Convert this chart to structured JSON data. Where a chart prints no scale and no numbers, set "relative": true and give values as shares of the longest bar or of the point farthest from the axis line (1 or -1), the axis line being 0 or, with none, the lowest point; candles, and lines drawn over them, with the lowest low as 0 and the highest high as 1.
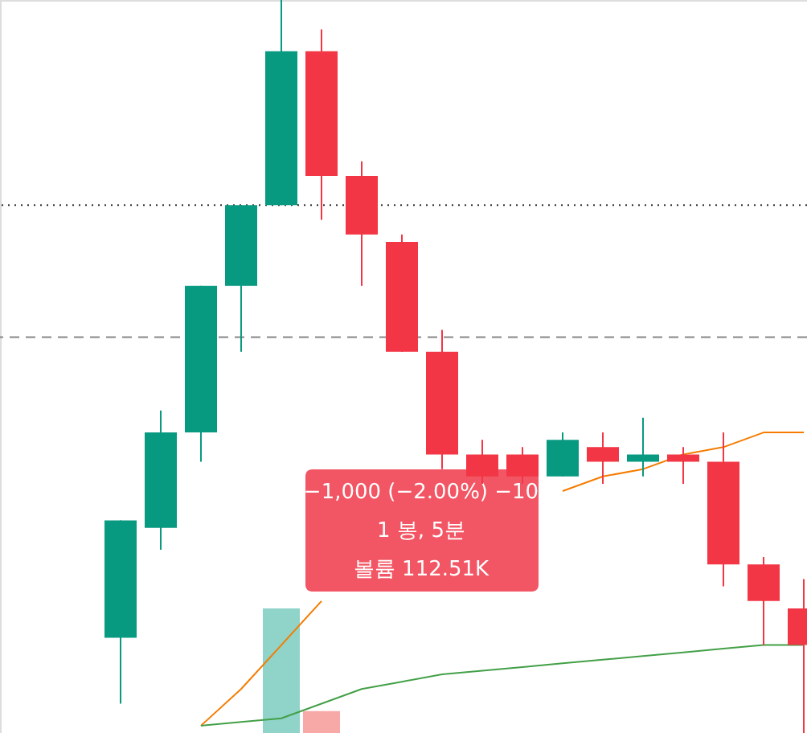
{
  "chart_data": {
    "type": "candlestick",
    "relative": true,
    "categories": [
      null,
      null,
      null,
      null,
      null,
      null,
      null,
      null,
      null,
      null,
      null,
      null,
      null,
      null,
      null,
      null,
      null,
      null
    ],
    "ohlc": [
      [
        0.13,
        0.29,
        0.04,
        0.29
      ],
      [
        0.28,
        0.44,
        0.25,
        0.41
      ],
      [
        0.41,
        0.61,
        0.37,
        0.61
      ],
      [
        0.61,
        0.72,
        0.52,
        0.72
      ],
      [
        0.72,
        1.0,
        0.72,
        0.93
      ],
      [
        0.93,
        0.96,
        0.7,
        0.76
      ],
      [
        0.76,
        0.78,
        0.61,
        0.68
      ],
      [
        0.67,
        0.68,
        0.52,
        0.52
      ],
      [
        0.52,
        0.55,
        0.36,
        0.38
      ],
      [
        0.38,
        0.4,
        0.34,
        0.35
      ],
      [
        0.38,
        0.39,
        0.34,
        0.35
      ],
      [
        0.35,
        0.41,
        0.35,
        0.4
      ],
      [
        0.39,
        0.41,
        0.34,
        0.37
      ],
      [
        0.37,
        0.43,
        0.35,
        0.38
      ],
      [
        0.38,
        0.39,
        0.34,
        0.37
      ],
      [
        0.37,
        0.41,
        0.2,
        0.23
      ],
      [
        0.23,
        0.24,
        0.12,
        0.18
      ],
      [
        0.17,
        0.21,
        0.0,
        0.12
      ]
    ],
    "colors": [
      "#089981",
      "#089981",
      "#089981",
      "#089981",
      "#089981",
      "#f23645",
      "#f23645",
      "#f23645",
      "#f23645",
      "#f23645",
      "#f23645",
      "#089981",
      "#f23645",
      "#089981",
      "#f23645",
      "#f23645",
      "#f23645",
      "#f23645"
    ],
    "series": [
      {
        "type": "bar",
        "values": [
          null,
          null,
          null,
          null,
          0.17,
          0.03,
          null,
          null,
          null,
          null,
          null,
          null,
          null,
          null,
          null,
          null,
          null,
          null
        ],
        "colors": [
          null,
          null,
          null,
          null,
          "#8fd3c9",
          "#f7a9a7",
          null,
          null,
          null,
          null,
          null,
          null,
          null,
          null,
          null,
          null,
          null,
          null
        ]
      },
      {
        "type": "line",
        "color": "#f57c00",
        "values": [
          null,
          null,
          0.01,
          0.06,
          0.12,
          0.18,
          null,
          null,
          null,
          null,
          null,
          0.33,
          0.35,
          0.36,
          0.38,
          0.39,
          0.41,
          0.41
        ]
      },
      {
        "type": "line",
        "color": "#43a047",
        "values": [
          null,
          null,
          0.01,
          0.015,
          0.02,
          0.04,
          0.06,
          0.07,
          0.08,
          0.085,
          0.09,
          0.095,
          0.1,
          0.105,
          0.11,
          0.115,
          0.12,
          0.12
        ]
      }
    ],
    "ref_lines": [
      {
        "axis": "y",
        "value": 0.72,
        "color": "#333333",
        "line_style": "dotted"
      },
      {
        "axis": "y",
        "value": 0.54,
        "color": "#888888",
        "line_style": "dashed"
      }
    ],
    "annotations": [
      "−1,000 (−2.00%) −10",
      "1 봉, 5분",
      "볼륨 112.51K"
    ]
  }
}
